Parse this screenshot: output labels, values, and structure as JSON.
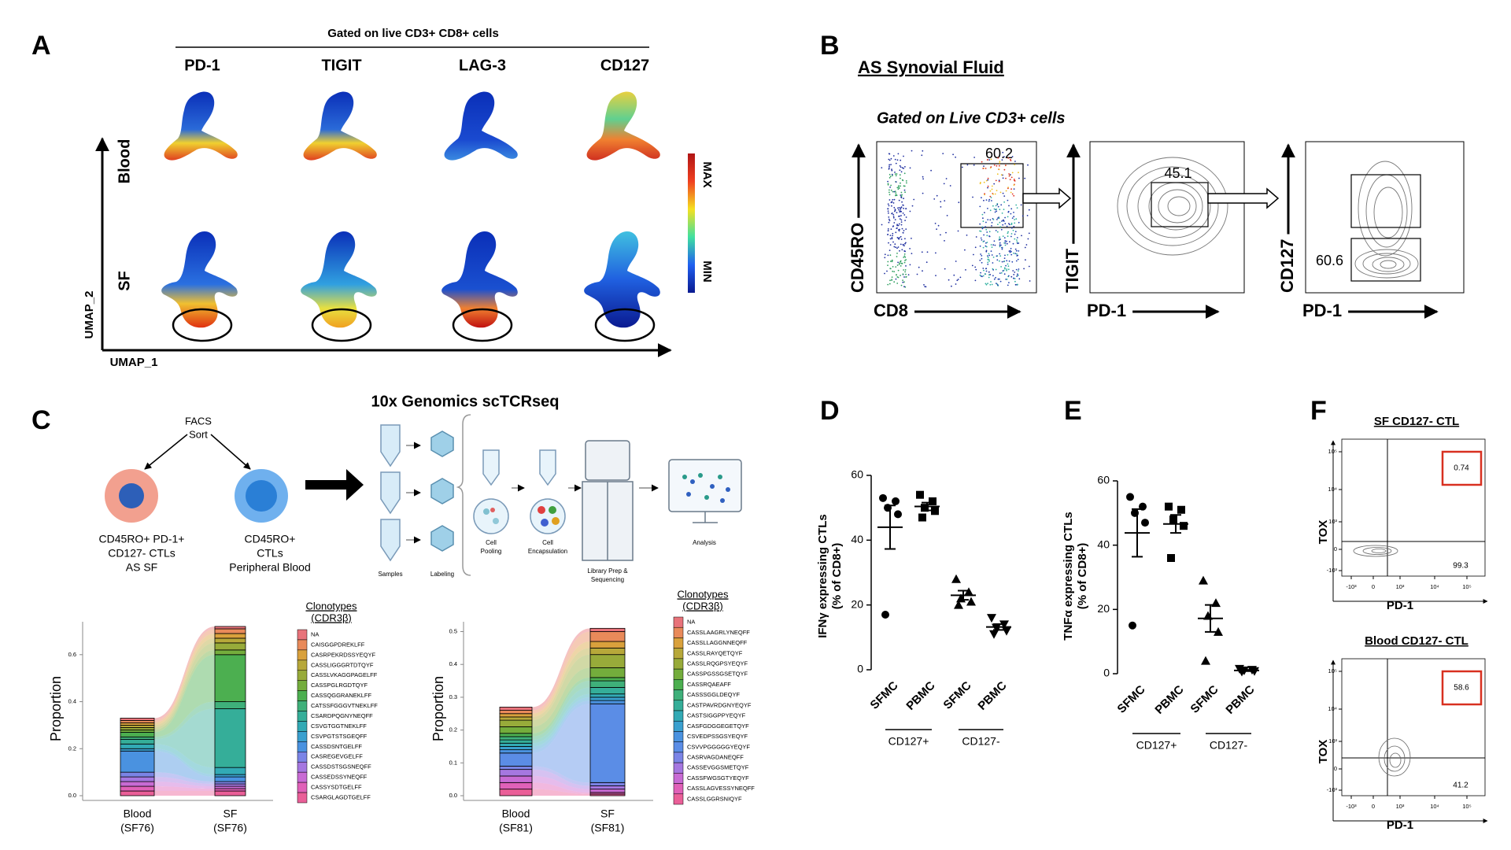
{
  "figure": {
    "panel_letters": [
      "A",
      "B",
      "C",
      "D",
      "E",
      "F"
    ],
    "a": {
      "header": "Gated on live CD3+ CD8+ cells",
      "markers": [
        "PD-1",
        "TIGIT",
        "LAG-3",
        "CD127"
      ],
      "rows": [
        "Blood",
        "SF"
      ],
      "y_axis": "UMAP_2",
      "x_axis": "UMAP_1",
      "scale": [
        "MAX",
        "MIN"
      ]
    },
    "b": {
      "title": "AS Synovial Fluid",
      "gating": "Gated on Live CD3+ cells",
      "plots": [
        {
          "y": "CD45RO",
          "x": "CD8",
          "gates": [
            60.2
          ]
        },
        {
          "y": "TIGIT",
          "x": "PD-1",
          "gates": [
            45.1
          ]
        },
        {
          "y": "CD127",
          "x": "PD-1",
          "gates": [
            60.6
          ]
        }
      ]
    },
    "c": {
      "facs": [
        "FACS",
        "Sort"
      ],
      "populations": [
        [
          "CD45RO+ PD-1+",
          "CD127- CTLs",
          "AS SF"
        ],
        [
          "CD45RO+",
          "CTLs",
          "Peripheral Blood"
        ]
      ],
      "workflow_title": "10x Genomics scTCRseq",
      "steps": [
        [
          "Samples"
        ],
        [
          "Labeling"
        ],
        [
          "Cell",
          "Pooling"
        ],
        [
          "Cell",
          "Encapsulation"
        ],
        [
          "Library Prep &",
          "Sequencing"
        ],
        [
          "Analysis"
        ]
      ]
    },
    "f": {
      "plots": [
        {
          "title": "SF CD127- CTL",
          "y": "TOX",
          "x": "PD-1",
          "gates": [
            0.74,
            99.3
          ]
        },
        {
          "title": "Blood CD127- CTL",
          "y": "TOX",
          "x": "PD-1",
          "gates": [
            58.6,
            41.2
          ]
        }
      ],
      "xticks": [
        "-10³",
        "0",
        "10³",
        "10⁴",
        "10⁵"
      ],
      "yticks": [
        "10⁵",
        "10⁴",
        "10³",
        "0",
        "-10³"
      ]
    }
  },
  "chart_data": [
    {
      "type": "alluvial",
      "ylabel": "Proportion",
      "ylim": [
        0,
        0.74
      ],
      "yticks": [
        {
          "value": 0,
          "label": "0.0"
        },
        0.2,
        0.4,
        0.6
      ],
      "categories": [
        "Blood",
        "SF"
      ],
      "samples": [
        "(SF76)",
        "(SF76)"
      ],
      "legend_title": [
        "Clonotypes",
        "(CDR3β)"
      ],
      "series": [
        {
          "name": "NA",
          "color": "#e8737a",
          "values": [
            0.01,
            0.01
          ]
        },
        {
          "name": "CAISGGPDREKLFF",
          "color": "#e98a5a",
          "values": [
            0.01,
            0.02
          ]
        },
        {
          "name": "CASRPEKRDSSYEQYF",
          "color": "#d9a13c",
          "values": [
            0.01,
            0.02
          ]
        },
        {
          "name": "CASSLIGGGRTDTQYF",
          "color": "#b7a83a",
          "values": [
            0.01,
            0.02
          ]
        },
        {
          "name": "CASSLVKAGGPAGELFF",
          "color": "#98ab3a",
          "values": [
            0.01,
            0.03
          ]
        },
        {
          "name": "CASSPGLRGDTQYF",
          "color": "#74ad3c",
          "values": [
            0.01,
            0.02
          ]
        },
        {
          "name": "CASSQGGRANEKLFF",
          "color": "#4caf50",
          "values": [
            0.02,
            0.2
          ]
        },
        {
          "name": "CATSSFGGGVTNEKLFF",
          "color": "#3fb07a",
          "values": [
            0.01,
            0.03
          ]
        },
        {
          "name": "CSARDPQGNYNEQFF",
          "color": "#35ae99",
          "values": [
            0.02,
            0.25
          ]
        },
        {
          "name": "CSVGTGGTNEKLFF",
          "color": "#32aab5",
          "values": [
            0.02,
            0.03
          ]
        },
        {
          "name": "CSVPGTSTSGEQFF",
          "color": "#3aa0cf",
          "values": [
            0.01,
            0.01
          ]
        },
        {
          "name": "CASSDSNTGELFF",
          "color": "#4a92e0",
          "values": [
            0.09,
            0.02
          ]
        },
        {
          "name": "CASREGEVGELFF",
          "color": "#7b84e6",
          "values": [
            0.02,
            0.01
          ]
        },
        {
          "name": "CASSDSTSGSNEQFF",
          "color": "#a577e0",
          "values": [
            0.02,
            0.01
          ]
        },
        {
          "name": "CASSEDSSYNEQFF",
          "color": "#c86bd4",
          "values": [
            0.02,
            0.01
          ]
        },
        {
          "name": "CASSYSDTGELFF",
          "color": "#e061b8",
          "values": [
            0.02,
            0.01
          ]
        },
        {
          "name": "CSARGLAGDTGELFF",
          "color": "#ea5f98",
          "values": [
            0.02,
            0.02
          ]
        }
      ]
    },
    {
      "type": "alluvial",
      "ylabel": "Proportion",
      "ylim": [
        0,
        0.53
      ],
      "yticks": [
        {
          "value": 0,
          "label": "0.0"
        },
        0.1,
        0.2,
        0.3,
        0.4,
        0.5
      ],
      "categories": [
        "Blood",
        "SF"
      ],
      "samples": [
        "(SF81)",
        "(SF81)"
      ],
      "legend_title": [
        "Clonotypes",
        "(CDR3β)"
      ],
      "series": [
        {
          "name": "NA",
          "color": "#e8737a",
          "values": [
            0.01,
            0.01
          ]
        },
        {
          "name": "CASSLAAGRLYNEQFF",
          "color": "#e98a5a",
          "values": [
            0.01,
            0.03
          ]
        },
        {
          "name": "CASSLLAGGNNEQFF",
          "color": "#d9a13c",
          "values": [
            0.01,
            0.02
          ]
        },
        {
          "name": "CASSLRAYQETQYF",
          "color": "#b7a83a",
          "values": [
            0.01,
            0.02
          ]
        },
        {
          "name": "CASSLRQGPSYEQYF",
          "color": "#98ab3a",
          "values": [
            0.02,
            0.04
          ]
        },
        {
          "name": "CASSPGSSGSETQYF",
          "color": "#74ad3c",
          "values": [
            0.02,
            0.03
          ]
        },
        {
          "name": "CASSRQAEAFF",
          "color": "#4caf50",
          "values": [
            0.01,
            0.01
          ]
        },
        {
          "name": "CASSSGGLDEQYF",
          "color": "#3fb07a",
          "values": [
            0.01,
            0.02
          ]
        },
        {
          "name": "CASTPAVRDGNYEQYF",
          "color": "#35ae99",
          "values": [
            0.01,
            0.02
          ]
        },
        {
          "name": "CASTSIGGPPYEQYF",
          "color": "#32aab5",
          "values": [
            0.01,
            0.01
          ]
        },
        {
          "name": "CASFGDGGEGETQYF",
          "color": "#3aa0cf",
          "values": [
            0.01,
            0.01
          ]
        },
        {
          "name": "CSVEDPSSGSYEQYF",
          "color": "#4a92e0",
          "values": [
            0.01,
            0.01
          ]
        },
        {
          "name": "CSVVPGGGGGYEQYF",
          "color": "#5b8de6",
          "values": [
            0.04,
            0.24
          ]
        },
        {
          "name": "CASRVAGDANEQFF",
          "color": "#7b84e6",
          "values": [
            0.01,
            0.01
          ]
        },
        {
          "name": "CASSEVGGSMETQYF",
          "color": "#a577e0",
          "values": [
            0.02,
            0.01
          ]
        },
        {
          "name": "CASSFWGSGTYEQYF",
          "color": "#c86bd4",
          "values": [
            0.02,
            0.01
          ]
        },
        {
          "name": "CASSLAGVESSYNEQFF",
          "color": "#e061b8",
          "values": [
            0.02,
            0.005
          ]
        },
        {
          "name": "CASSLGGRSNIQYF",
          "color": "#ea5f98",
          "values": [
            0.02,
            0.005
          ]
        }
      ]
    },
    {
      "type": "dot",
      "ylabel": [
        "IFNγ expressing CTLs",
        "(% of CD8+)"
      ],
      "ylim": [
        0,
        60
      ],
      "yticks": [
        0,
        20,
        40,
        60
      ],
      "categories": [
        "SFMC",
        "PBMC",
        "SFMC",
        "PBMC"
      ],
      "groups": [
        "CD127+",
        "CD127-"
      ],
      "markers": [
        "circle",
        "square",
        "triangle",
        "triangle-down"
      ],
      "color": "#000000",
      "values": [
        [
          53,
          52,
          50,
          48,
          17
        ],
        [
          54,
          52,
          50,
          49,
          47
        ],
        [
          28,
          24,
          22,
          21,
          20
        ],
        [
          16,
          14,
          13,
          12,
          11
        ]
      ],
      "mean": [
        44,
        50.4,
        23,
        13.2
      ],
      "sem": [
        6.7,
        1.2,
        1.4,
        0.9
      ]
    },
    {
      "type": "dot",
      "ylabel": [
        "TNFα expressing CTLs",
        "(% of CD8+)"
      ],
      "ylim": [
        0,
        60
      ],
      "yticks": [
        0,
        20,
        40,
        60
      ],
      "categories": [
        "SFMC",
        "PBMC",
        "SFMC",
        "PBMC"
      ],
      "groups": [
        "CD127+",
        "CD127-"
      ],
      "markers": [
        "circle",
        "square",
        "triangle",
        "triangle-down"
      ],
      "color": "#000000",
      "values": [
        [
          55,
          52,
          50,
          47,
          15
        ],
        [
          52,
          51,
          48,
          46,
          36
        ],
        [
          29,
          22,
          18,
          13,
          4
        ],
        [
          1.5,
          1.2,
          1,
          0.8,
          0.6
        ]
      ],
      "mean": [
        43.8,
        46.6,
        17.2,
        1
      ],
      "sem": [
        7.4,
        2.8,
        4.2,
        0.2
      ]
    }
  ]
}
